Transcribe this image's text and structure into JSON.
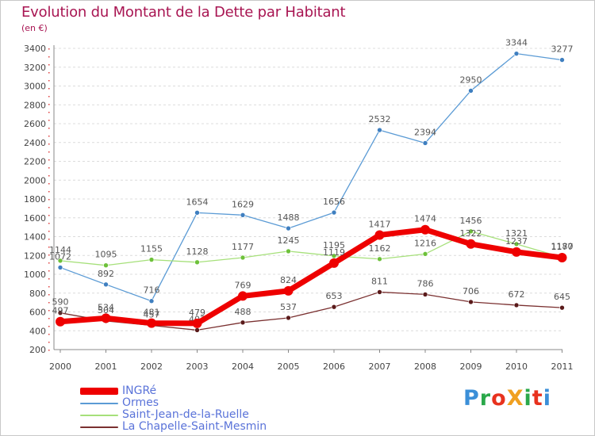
{
  "header": {
    "title": "Evolution du Montant de la Dette par Habitant",
    "unit": "(en €)"
  },
  "logo": {
    "text": "ProXiti",
    "colors": [
      "#3b8fd8",
      "#2aa84a",
      "#e8321e",
      "#f0a020",
      "#2aa84a",
      "#e8321e",
      "#3b8fd8"
    ]
  },
  "chart_data": {
    "type": "line",
    "title": "Evolution du Montant de la Dette par Habitant",
    "ylabel": "(en €)",
    "xlabel": "",
    "categories": [
      "2000",
      "2001",
      "2002",
      "2003",
      "2004",
      "2005",
      "2006",
      "2007",
      "2008",
      "2009",
      "2010",
      "2011"
    ],
    "ylim": [
      200,
      3400
    ],
    "yticks": [
      200,
      400,
      600,
      800,
      1000,
      1200,
      1400,
      1600,
      1800,
      2000,
      2200,
      2400,
      2600,
      2800,
      3000,
      3200,
      3400
    ],
    "grid": "horizontal",
    "legend_position": "bottom-left",
    "series": [
      {
        "name": "Ormes",
        "color": "#5b9bd5",
        "marker": "#3f7fc0",
        "width": 1.3,
        "values": [
          1072,
          892,
          716,
          1654,
          1629,
          1488,
          1656,
          2532,
          2394,
          2950,
          3344,
          3277
        ]
      },
      {
        "name": "Saint-Jean-de-la-Ruelle",
        "color": "#a6e07a",
        "marker": "#6dc13a",
        "width": 1.3,
        "values": [
          1144,
          1095,
          1155,
          1128,
          1177,
          1245,
          1195,
          1162,
          1216,
          1456,
          1321,
          1180
        ]
      },
      {
        "name": "La Chapelle-Saint-Mesmin",
        "color": "#7a3030",
        "marker": "#5a1a1a",
        "width": 1.3,
        "values": [
          590,
          504,
          457,
          407,
          488,
          537,
          653,
          811,
          786,
          706,
          672,
          645
        ]
      },
      {
        "name": "INGRé",
        "color": "#ee0000",
        "marker": "#ee0000",
        "width": 7,
        "values": [
          497,
          534,
          481,
          479,
          769,
          824,
          1119,
          1417,
          1474,
          1322,
          1237,
          1177
        ]
      }
    ]
  }
}
